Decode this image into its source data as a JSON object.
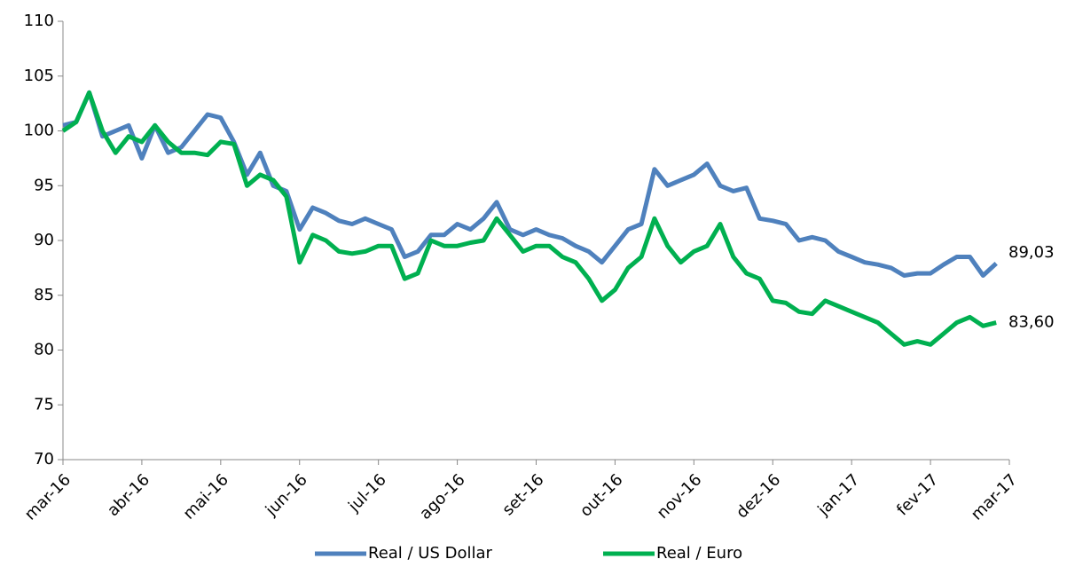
{
  "chart_data": {
    "type": "line",
    "categories": [
      "mar-16",
      null,
      null,
      null,
      null,
      null,
      "abr-16",
      null,
      null,
      null,
      null,
      null,
      "mai-16",
      null,
      null,
      null,
      null,
      null,
      "jun-16",
      null,
      null,
      null,
      null,
      null,
      "jul-16",
      null,
      null,
      null,
      null,
      null,
      "ago-16",
      null,
      null,
      null,
      null,
      null,
      "set-16",
      null,
      null,
      null,
      null,
      null,
      "out-16",
      null,
      null,
      null,
      null,
      null,
      "nov-16",
      null,
      null,
      null,
      null,
      null,
      "dez-16",
      null,
      null,
      null,
      null,
      null,
      "jan-17",
      null,
      null,
      null,
      null,
      null,
      "fev-17",
      null,
      null,
      null,
      null,
      null,
      "mar-17"
    ],
    "series": [
      {
        "name": "Real / US Dollar",
        "color": "#4f81bd",
        "values": [
          100.5,
          100.8,
          103.5,
          99.5,
          100.0,
          100.5,
          97.5,
          100.5,
          98.0,
          98.5,
          100.0,
          101.5,
          101.2,
          99.0,
          96.0,
          98.0,
          95.0,
          94.5,
          91.0,
          93.0,
          92.5,
          91.8,
          91.5,
          92.0,
          91.5,
          91.0,
          88.5,
          89.0,
          90.5,
          90.5,
          91.5,
          91.0,
          92.0,
          93.5,
          91.0,
          90.5,
          91.0,
          90.5,
          90.2,
          89.5,
          89.0,
          88.0,
          89.5,
          91.0,
          91.5,
          96.5,
          95.0,
          95.5,
          96.0,
          97.0,
          95.0,
          94.5,
          94.8,
          92.0,
          91.8,
          91.5,
          90.0,
          90.3,
          90.0,
          89.0,
          88.5,
          88.0,
          87.8,
          87.5,
          86.8,
          87.0,
          87.0,
          87.8,
          88.5,
          88.5,
          86.8,
          87.9,
          null
        ]
      },
      {
        "name": "Real / Euro",
        "color": "#00b050",
        "values": [
          100.0,
          100.8,
          103.5,
          100.0,
          98.0,
          99.5,
          99.0,
          100.5,
          99.0,
          98.0,
          98.0,
          97.8,
          99.0,
          98.8,
          95.0,
          96.0,
          95.5,
          94.0,
          88.0,
          90.5,
          90.0,
          89.0,
          88.8,
          89.0,
          89.5,
          89.5,
          86.5,
          87.0,
          90.0,
          89.5,
          89.5,
          89.8,
          90.0,
          92.0,
          90.5,
          89.0,
          89.5,
          89.5,
          88.5,
          88.0,
          86.5,
          84.5,
          85.5,
          87.5,
          88.5,
          92.0,
          89.5,
          88.0,
          89.0,
          89.5,
          91.5,
          88.5,
          87.0,
          86.5,
          84.5,
          84.3,
          83.5,
          83.3,
          84.5,
          84.0,
          83.5,
          83.0,
          82.5,
          81.5,
          80.5,
          80.8,
          80.5,
          81.5,
          82.5,
          83.0,
          82.2,
          82.5,
          null
        ]
      }
    ],
    "annotations": [
      "89,03",
      "83,60"
    ],
    "ylim": [
      70,
      110
    ],
    "yticks": [
      70,
      75,
      80,
      85,
      90,
      95,
      100,
      105,
      110
    ],
    "legend": "bottom"
  }
}
